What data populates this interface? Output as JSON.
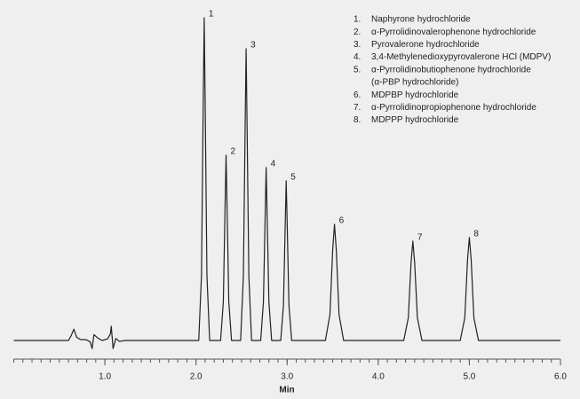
{
  "chart_data": {
    "type": "line",
    "x_label": "Min",
    "xlim": [
      0,
      6
    ],
    "ylim": [
      -5,
      100
    ],
    "xticks": [
      {
        "value": 1,
        "label": "1.0"
      },
      {
        "value": 2,
        "label": "2.0"
      },
      {
        "value": 3,
        "label": "3.0"
      },
      {
        "value": 4,
        "label": "4.0"
      },
      {
        "value": 5,
        "label": "5.0"
      },
      {
        "value": 6,
        "label": "6.0"
      }
    ],
    "xminorticks": [
      0,
      0.1,
      0.2,
      0.3,
      0.4,
      0.5,
      0.6,
      0.7,
      0.8,
      0.9,
      1.0,
      1.1,
      1.2,
      1.3,
      1.4,
      1.5,
      1.6,
      1.7,
      1.8,
      1.9,
      2.0,
      2.1,
      2.2,
      2.3,
      2.4,
      2.5,
      2.6,
      2.7,
      2.8,
      2.9,
      3.0,
      3.1,
      3.2,
      3.3,
      3.4,
      3.5,
      3.6,
      3.7,
      3.8,
      3.9,
      4.0,
      4.1,
      4.2,
      4.3,
      4.4,
      4.5,
      4.6,
      4.7,
      4.8,
      4.9,
      5.0,
      5.1,
      5.2,
      5.3,
      5.4,
      5.5,
      5.6,
      5.7,
      5.8,
      5.9,
      6.0
    ],
    "color": "#222222",
    "x": [
      0.0,
      0.6,
      0.63,
      0.66,
      0.69,
      0.73,
      0.8,
      0.84,
      0.86,
      0.88,
      0.92,
      0.97,
      1.03,
      1.06,
      1.07,
      1.09,
      1.12,
      1.16,
      1.22,
      2.03,
      2.06,
      2.08,
      2.09,
      2.1,
      2.12,
      2.15,
      2.27,
      2.3,
      2.32,
      2.33,
      2.34,
      2.36,
      2.39,
      2.49,
      2.52,
      2.54,
      2.55,
      2.56,
      2.58,
      2.61,
      2.71,
      2.74,
      2.76,
      2.77,
      2.78,
      2.8,
      2.83,
      2.93,
      2.96,
      2.98,
      2.99,
      3.0,
      3.02,
      3.05,
      3.42,
      3.47,
      3.5,
      3.52,
      3.54,
      3.57,
      3.62,
      4.28,
      4.33,
      4.36,
      4.38,
      4.4,
      4.43,
      4.48,
      4.9,
      4.95,
      4.98,
      5.0,
      5.02,
      5.05,
      5.1,
      6.0
    ],
    "values": [
      0,
      0,
      1.5,
      3.5,
      1.0,
      0.3,
      0.2,
      -0.5,
      -2.5,
      1.8,
      0.8,
      0,
      0.5,
      2.0,
      4.4,
      -2.5,
      0.6,
      -0.3,
      0,
      0,
      20,
      75,
      100,
      75,
      20,
      0,
      0,
      12,
      43,
      57.4,
      43,
      12,
      0,
      0,
      20,
      68,
      90.4,
      68,
      20,
      0,
      0,
      12,
      40,
      53.6,
      40,
      12,
      0,
      0,
      11,
      37,
      49.5,
      37,
      11,
      0,
      0,
      8,
      28,
      36,
      28,
      8,
      0,
      0,
      7,
      24,
      30.8,
      24,
      7,
      0,
      0,
      7,
      25,
      31.9,
      25,
      7,
      0,
      0
    ],
    "annotations": [
      {
        "text": "1",
        "x": 2.09,
        "y": 100
      },
      {
        "text": "2",
        "x": 2.33,
        "y": 57.4
      },
      {
        "text": "3",
        "x": 2.55,
        "y": 90.4
      },
      {
        "text": "4",
        "x": 2.77,
        "y": 53.6
      },
      {
        "text": "5",
        "x": 2.99,
        "y": 49.5
      },
      {
        "text": "6",
        "x": 3.52,
        "y": 36
      },
      {
        "text": "7",
        "x": 4.38,
        "y": 30.8
      },
      {
        "text": "8",
        "x": 5.0,
        "y": 31.9
      }
    ],
    "compounds": [
      {
        "number": "1.",
        "name": "Naphyrone hydrochloride"
      },
      {
        "number": "2.",
        "name": "α-Pyrrolidinovalerophenone hydrochloride"
      },
      {
        "number": "3.",
        "name": "Pyrovalerone hydrochloride"
      },
      {
        "number": "4.",
        "name": "3,4-Methylenedioxypyrovalerone HCl (MDPV)"
      },
      {
        "number": "5.",
        "name": "α-Pyrrolidinobutiophenone hydrochloride",
        "note": "(α-PBP hydrochloride)"
      },
      {
        "number": "6.",
        "name": "MDPBP hydrochloride"
      },
      {
        "number": "7.",
        "name": "α-Pyrrolidinopropiophenone hydrochloride"
      },
      {
        "number": "8.",
        "name": "MDPPP hydrochloride"
      }
    ]
  }
}
